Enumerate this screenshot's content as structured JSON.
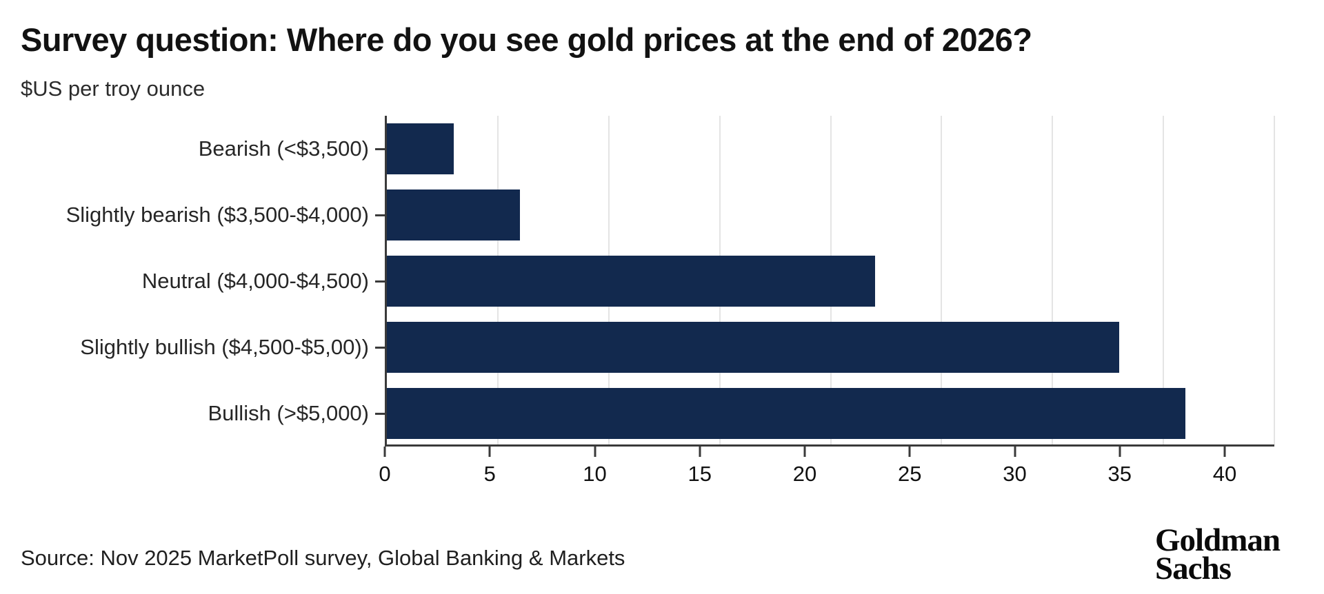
{
  "header": {
    "title": "Survey question: Where do you see gold prices at the end of 2026?",
    "subtitle": "$US per troy ounce"
  },
  "chart_data": {
    "type": "bar",
    "orientation": "horizontal",
    "title": "Survey question: Where do you see gold prices at the end of 2026?",
    "units_label": "$US per troy ounce",
    "categories": [
      "Bearish (<$3,500)",
      "Slightly bearish ($3,500-$4,000)",
      "Neutral ($4,000-$4,500)",
      "Slightly bullish ($4,500-$5,00))",
      "Bullish (>$5,000)"
    ],
    "values": [
      3,
      6,
      22,
      33,
      36
    ],
    "xlim": [
      0,
      40
    ],
    "xticks": [
      0,
      5,
      10,
      15,
      20,
      25,
      30,
      35,
      40
    ],
    "xlabel": "",
    "ylabel": "",
    "grid": "vertical gridlines at each x tick",
    "legend": "none",
    "bar_color": "#12294e"
  },
  "colors": {
    "bar": "#12294e",
    "axis": "#3a3a3a",
    "gridline": "#e4e4e4",
    "title_text": "#121212",
    "body_text": "#262626"
  },
  "footer": {
    "source": "Source: Nov 2025 MarketPoll survey, Global Banking & Markets",
    "logo_line1": "Goldman",
    "logo_line2": "Sachs"
  }
}
